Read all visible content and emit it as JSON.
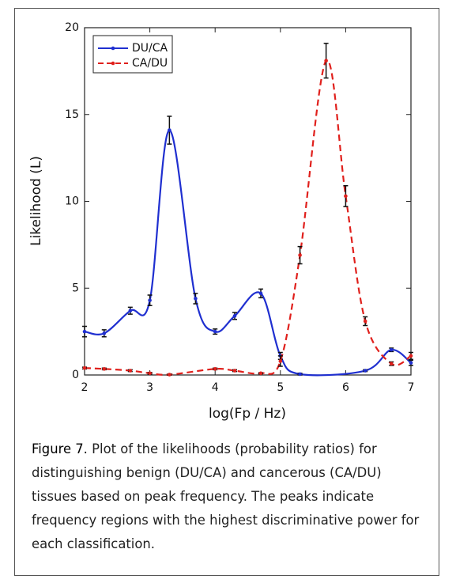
{
  "chart_data": {
    "type": "line",
    "xlabel": "log(Fp / Hz)",
    "ylabel": "Likelihood (L)",
    "xlim": [
      2,
      7
    ],
    "xticks": [
      2,
      3,
      4,
      5,
      6,
      7
    ],
    "ylim": [
      0,
      20
    ],
    "yticks": [
      0,
      5,
      10,
      15,
      20
    ],
    "legend": "upper left",
    "series": [
      {
        "name": "DU/CA",
        "color": "#1f2fd0",
        "linestyle": "solid",
        "x": [
          2,
          2.3,
          2.7,
          3,
          3.3,
          3.7,
          4,
          4.3,
          4.7,
          5,
          5.3,
          6.3,
          6.7,
          7
        ],
        "values": [
          2.5,
          2.4,
          3.7,
          4.3,
          14.1,
          4.4,
          2.5,
          3.4,
          4.7,
          1.1,
          0.05,
          0.25,
          1.45,
          0.7
        ],
        "errors": [
          0.3,
          0.2,
          0.2,
          0.3,
          0.8,
          0.3,
          0.15,
          0.2,
          0.25,
          0.2,
          0.05,
          0.05,
          0.1,
          0.15
        ]
      },
      {
        "name": "CA/DU",
        "color": "#e0201c",
        "linestyle": "dashed",
        "x": [
          2,
          2.3,
          2.7,
          3,
          3.3,
          4,
          4.3,
          4.7,
          5,
          5.3,
          5.7,
          6,
          6.3,
          6.7,
          7
        ],
        "values": [
          0.4,
          0.35,
          0.25,
          0.1,
          0.02,
          0.35,
          0.25,
          0.1,
          0.8,
          6.9,
          18.1,
          10.3,
          3.1,
          0.65,
          1.1
        ],
        "errors": [
          0.05,
          0.05,
          0.05,
          0.05,
          0.03,
          0.05,
          0.05,
          0.03,
          0.3,
          0.5,
          1.0,
          0.6,
          0.25,
          0.1,
          0.2
        ]
      }
    ]
  },
  "caption": {
    "label": "Figure 7.",
    "text": "Plot of the likelihoods (probability ratios) for distinguishing benign (DU/CA) and cancerous (CA/DU) tissues based on peak frequency. The peaks indicate frequency regions with the highest discriminative power for each classification."
  }
}
